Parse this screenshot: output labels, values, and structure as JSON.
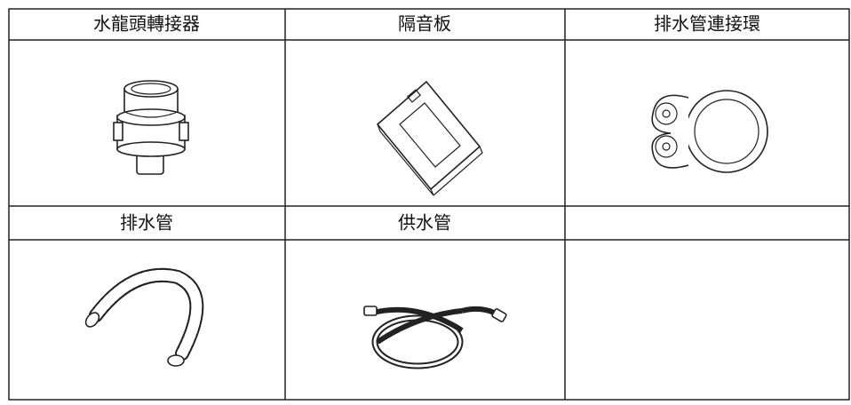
{
  "table": {
    "items": [
      {
        "label": "水龍頭轉接器"
      },
      {
        "label": "隔音板"
      },
      {
        "label": "排水管連接環"
      },
      {
        "label": "排水管"
      },
      {
        "label": "供水管"
      }
    ]
  }
}
